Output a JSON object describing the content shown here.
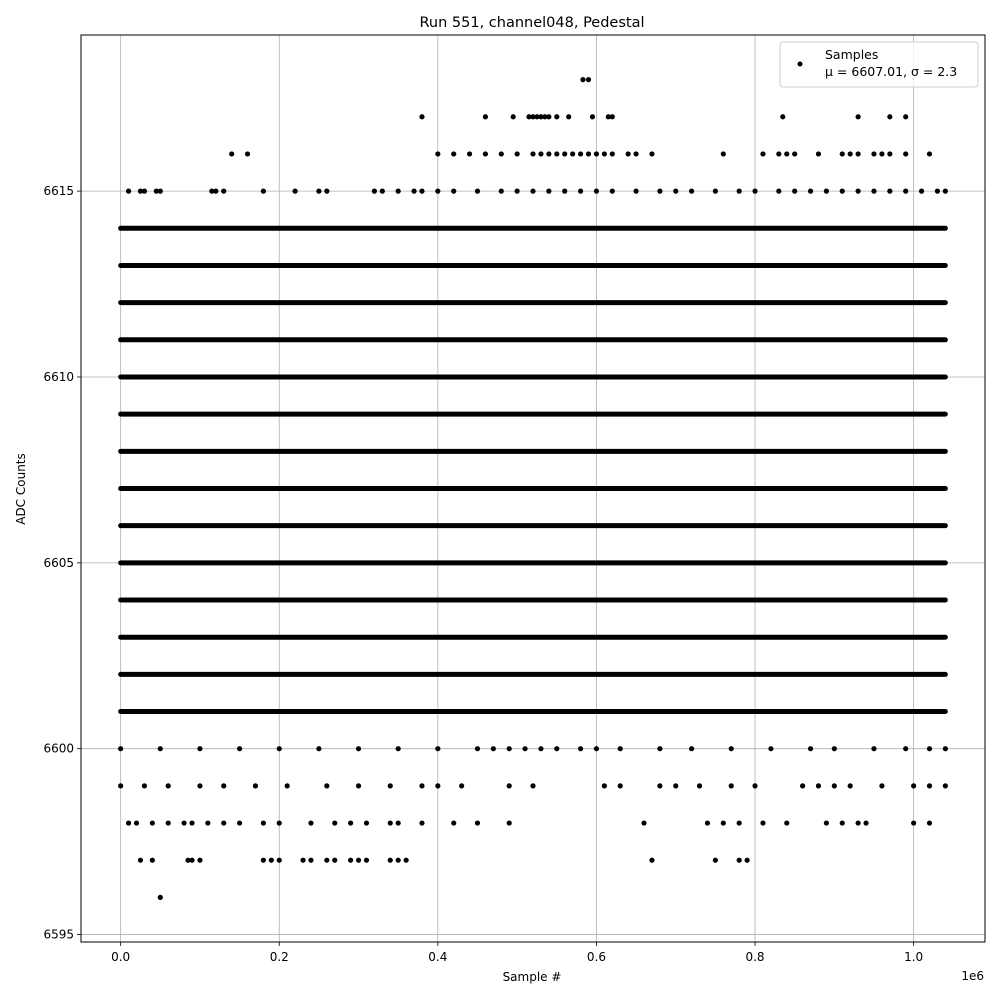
{
  "chart_data": {
    "type": "scatter",
    "title": "Run 551, channel048, Pedestal",
    "xlabel": "Sample #",
    "ylabel": "ADC Counts",
    "x_offset_label": "1e6",
    "xlim": [
      -0.05,
      1.09
    ],
    "ylim": [
      6594.8,
      6619.2
    ],
    "x_ticks": [
      0.0,
      0.2,
      0.4,
      0.6,
      0.8,
      1.0
    ],
    "x_tick_labels": [
      "0.0",
      "0.2",
      "0.4",
      "0.6",
      "0.8",
      "1.0"
    ],
    "y_ticks": [
      6595,
      6600,
      6605,
      6610,
      6615
    ],
    "y_tick_labels": [
      "6595",
      "6600",
      "6605",
      "6610",
      "6615"
    ],
    "grid": true,
    "marker_color": "#000000",
    "legend": {
      "placement": "top-right",
      "entry_name": "Samples",
      "entry_stats": "μ = 6607.01, σ = 2.3"
    },
    "x_unit_scale": 1000000,
    "dense_levels": {
      "y": [
        6601,
        6602,
        6603,
        6604,
        6605,
        6606,
        6607,
        6608,
        6609,
        6610,
        6611,
        6612,
        6613,
        6614
      ],
      "x_range": [
        0.0,
        1.04
      ]
    },
    "series": [
      {
        "values_level_6600": [
          [
            0.0,
            6600
          ],
          [
            0.05,
            6600
          ],
          [
            0.1,
            6600
          ],
          [
            0.15,
            6600
          ],
          [
            0.2,
            6600
          ],
          [
            0.25,
            6600
          ],
          [
            0.3,
            6600
          ],
          [
            0.35,
            6600
          ],
          [
            0.4,
            6600
          ],
          [
            0.45,
            6600
          ],
          [
            0.47,
            6600
          ],
          [
            0.49,
            6600
          ],
          [
            0.51,
            6600
          ],
          [
            0.53,
            6600
          ],
          [
            0.55,
            6600
          ],
          [
            0.58,
            6600
          ],
          [
            0.6,
            6600
          ],
          [
            0.63,
            6600
          ],
          [
            0.68,
            6600
          ],
          [
            0.72,
            6600
          ],
          [
            0.77,
            6600
          ],
          [
            0.82,
            6600
          ],
          [
            0.87,
            6600
          ],
          [
            0.9,
            6600
          ],
          [
            0.95,
            6600
          ],
          [
            0.99,
            6600
          ],
          [
            1.02,
            6600
          ],
          [
            1.04,
            6600
          ]
        ],
        "values_level_6599": [
          [
            0.0,
            6599
          ],
          [
            0.03,
            6599
          ],
          [
            0.06,
            6599
          ],
          [
            0.1,
            6599
          ],
          [
            0.13,
            6599
          ],
          [
            0.17,
            6599
          ],
          [
            0.21,
            6599
          ],
          [
            0.26,
            6599
          ],
          [
            0.3,
            6599
          ],
          [
            0.34,
            6599
          ],
          [
            0.38,
            6599
          ],
          [
            0.4,
            6599
          ],
          [
            0.43,
            6599
          ],
          [
            0.49,
            6599
          ],
          [
            0.52,
            6599
          ],
          [
            0.61,
            6599
          ],
          [
            0.63,
            6599
          ],
          [
            0.68,
            6599
          ],
          [
            0.7,
            6599
          ],
          [
            0.73,
            6599
          ],
          [
            0.77,
            6599
          ],
          [
            0.8,
            6599
          ],
          [
            0.86,
            6599
          ],
          [
            0.88,
            6599
          ],
          [
            0.9,
            6599
          ],
          [
            0.92,
            6599
          ],
          [
            0.96,
            6599
          ],
          [
            1.0,
            6599
          ],
          [
            1.02,
            6599
          ],
          [
            1.04,
            6599
          ]
        ],
        "values_level_6598": [
          [
            0.01,
            6598
          ],
          [
            0.02,
            6598
          ],
          [
            0.04,
            6598
          ],
          [
            0.06,
            6598
          ],
          [
            0.08,
            6598
          ],
          [
            0.09,
            6598
          ],
          [
            0.11,
            6598
          ],
          [
            0.13,
            6598
          ],
          [
            0.15,
            6598
          ],
          [
            0.18,
            6598
          ],
          [
            0.2,
            6598
          ],
          [
            0.24,
            6598
          ],
          [
            0.27,
            6598
          ],
          [
            0.29,
            6598
          ],
          [
            0.31,
            6598
          ],
          [
            0.34,
            6598
          ],
          [
            0.35,
            6598
          ],
          [
            0.38,
            6598
          ],
          [
            0.42,
            6598
          ],
          [
            0.45,
            6598
          ],
          [
            0.49,
            6598
          ],
          [
            0.66,
            6598
          ],
          [
            0.74,
            6598
          ],
          [
            0.76,
            6598
          ],
          [
            0.78,
            6598
          ],
          [
            0.81,
            6598
          ],
          [
            0.84,
            6598
          ],
          [
            0.89,
            6598
          ],
          [
            0.91,
            6598
          ],
          [
            0.93,
            6598
          ],
          [
            0.94,
            6598
          ],
          [
            1.0,
            6598
          ],
          [
            1.02,
            6598
          ]
        ],
        "values_level_6597": [
          [
            0.025,
            6597
          ],
          [
            0.04,
            6597
          ],
          [
            0.085,
            6597
          ],
          [
            0.09,
            6597
          ],
          [
            0.1,
            6597
          ],
          [
            0.18,
            6597
          ],
          [
            0.19,
            6597
          ],
          [
            0.2,
            6597
          ],
          [
            0.23,
            6597
          ],
          [
            0.24,
            6597
          ],
          [
            0.26,
            6597
          ],
          [
            0.27,
            6597
          ],
          [
            0.29,
            6597
          ],
          [
            0.3,
            6597
          ],
          [
            0.31,
            6597
          ],
          [
            0.34,
            6597
          ],
          [
            0.35,
            6597
          ],
          [
            0.36,
            6597
          ],
          [
            0.67,
            6597
          ],
          [
            0.75,
            6597
          ],
          [
            0.78,
            6597
          ],
          [
            0.79,
            6597
          ]
        ],
        "values_level_6596": [
          [
            0.05,
            6596
          ]
        ],
        "values_level_6615": [
          [
            0.01,
            6615
          ],
          [
            0.025,
            6615
          ],
          [
            0.03,
            6615
          ],
          [
            0.045,
            6615
          ],
          [
            0.05,
            6615
          ],
          [
            0.115,
            6615
          ],
          [
            0.12,
            6615
          ],
          [
            0.13,
            6615
          ],
          [
            0.18,
            6615
          ],
          [
            0.22,
            6615
          ],
          [
            0.25,
            6615
          ],
          [
            0.26,
            6615
          ],
          [
            0.32,
            6615
          ],
          [
            0.33,
            6615
          ],
          [
            0.35,
            6615
          ],
          [
            0.37,
            6615
          ],
          [
            0.38,
            6615
          ],
          [
            0.4,
            6615
          ],
          [
            0.42,
            6615
          ],
          [
            0.45,
            6615
          ],
          [
            0.48,
            6615
          ],
          [
            0.5,
            6615
          ],
          [
            0.52,
            6615
          ],
          [
            0.54,
            6615
          ],
          [
            0.56,
            6615
          ],
          [
            0.58,
            6615
          ],
          [
            0.6,
            6615
          ],
          [
            0.62,
            6615
          ],
          [
            0.65,
            6615
          ],
          [
            0.68,
            6615
          ],
          [
            0.7,
            6615
          ],
          [
            0.72,
            6615
          ],
          [
            0.75,
            6615
          ],
          [
            0.78,
            6615
          ],
          [
            0.8,
            6615
          ],
          [
            0.83,
            6615
          ],
          [
            0.85,
            6615
          ],
          [
            0.87,
            6615
          ],
          [
            0.89,
            6615
          ],
          [
            0.91,
            6615
          ],
          [
            0.93,
            6615
          ],
          [
            0.95,
            6615
          ],
          [
            0.97,
            6615
          ],
          [
            0.99,
            6615
          ],
          [
            1.01,
            6615
          ],
          [
            1.03,
            6615
          ],
          [
            1.04,
            6615
          ]
        ],
        "values_level_6616": [
          [
            0.14,
            6616
          ],
          [
            0.16,
            6616
          ],
          [
            0.4,
            6616
          ],
          [
            0.42,
            6616
          ],
          [
            0.44,
            6616
          ],
          [
            0.46,
            6616
          ],
          [
            0.48,
            6616
          ],
          [
            0.5,
            6616
          ],
          [
            0.52,
            6616
          ],
          [
            0.53,
            6616
          ],
          [
            0.54,
            6616
          ],
          [
            0.55,
            6616
          ],
          [
            0.56,
            6616
          ],
          [
            0.57,
            6616
          ],
          [
            0.58,
            6616
          ],
          [
            0.59,
            6616
          ],
          [
            0.6,
            6616
          ],
          [
            0.61,
            6616
          ],
          [
            0.62,
            6616
          ],
          [
            0.64,
            6616
          ],
          [
            0.65,
            6616
          ],
          [
            0.67,
            6616
          ],
          [
            0.76,
            6616
          ],
          [
            0.81,
            6616
          ],
          [
            0.83,
            6616
          ],
          [
            0.84,
            6616
          ],
          [
            0.85,
            6616
          ],
          [
            0.88,
            6616
          ],
          [
            0.91,
            6616
          ],
          [
            0.92,
            6616
          ],
          [
            0.93,
            6616
          ],
          [
            0.95,
            6616
          ],
          [
            0.96,
            6616
          ],
          [
            0.97,
            6616
          ],
          [
            0.99,
            6616
          ],
          [
            1.02,
            6616
          ]
        ],
        "values_level_6617": [
          [
            0.38,
            6617
          ],
          [
            0.46,
            6617
          ],
          [
            0.495,
            6617
          ],
          [
            0.515,
            6617
          ],
          [
            0.52,
            6617
          ],
          [
            0.525,
            6617
          ],
          [
            0.53,
            6617
          ],
          [
            0.535,
            6617
          ],
          [
            0.54,
            6617
          ],
          [
            0.55,
            6617
          ],
          [
            0.565,
            6617
          ],
          [
            0.595,
            6617
          ],
          [
            0.615,
            6617
          ],
          [
            0.62,
            6617
          ],
          [
            0.835,
            6617
          ],
          [
            0.93,
            6617
          ],
          [
            0.97,
            6617
          ],
          [
            0.99,
            6617
          ]
        ],
        "values_level_6618": [
          [
            0.583,
            6618
          ],
          [
            0.59,
            6618
          ]
        ]
      }
    ]
  }
}
